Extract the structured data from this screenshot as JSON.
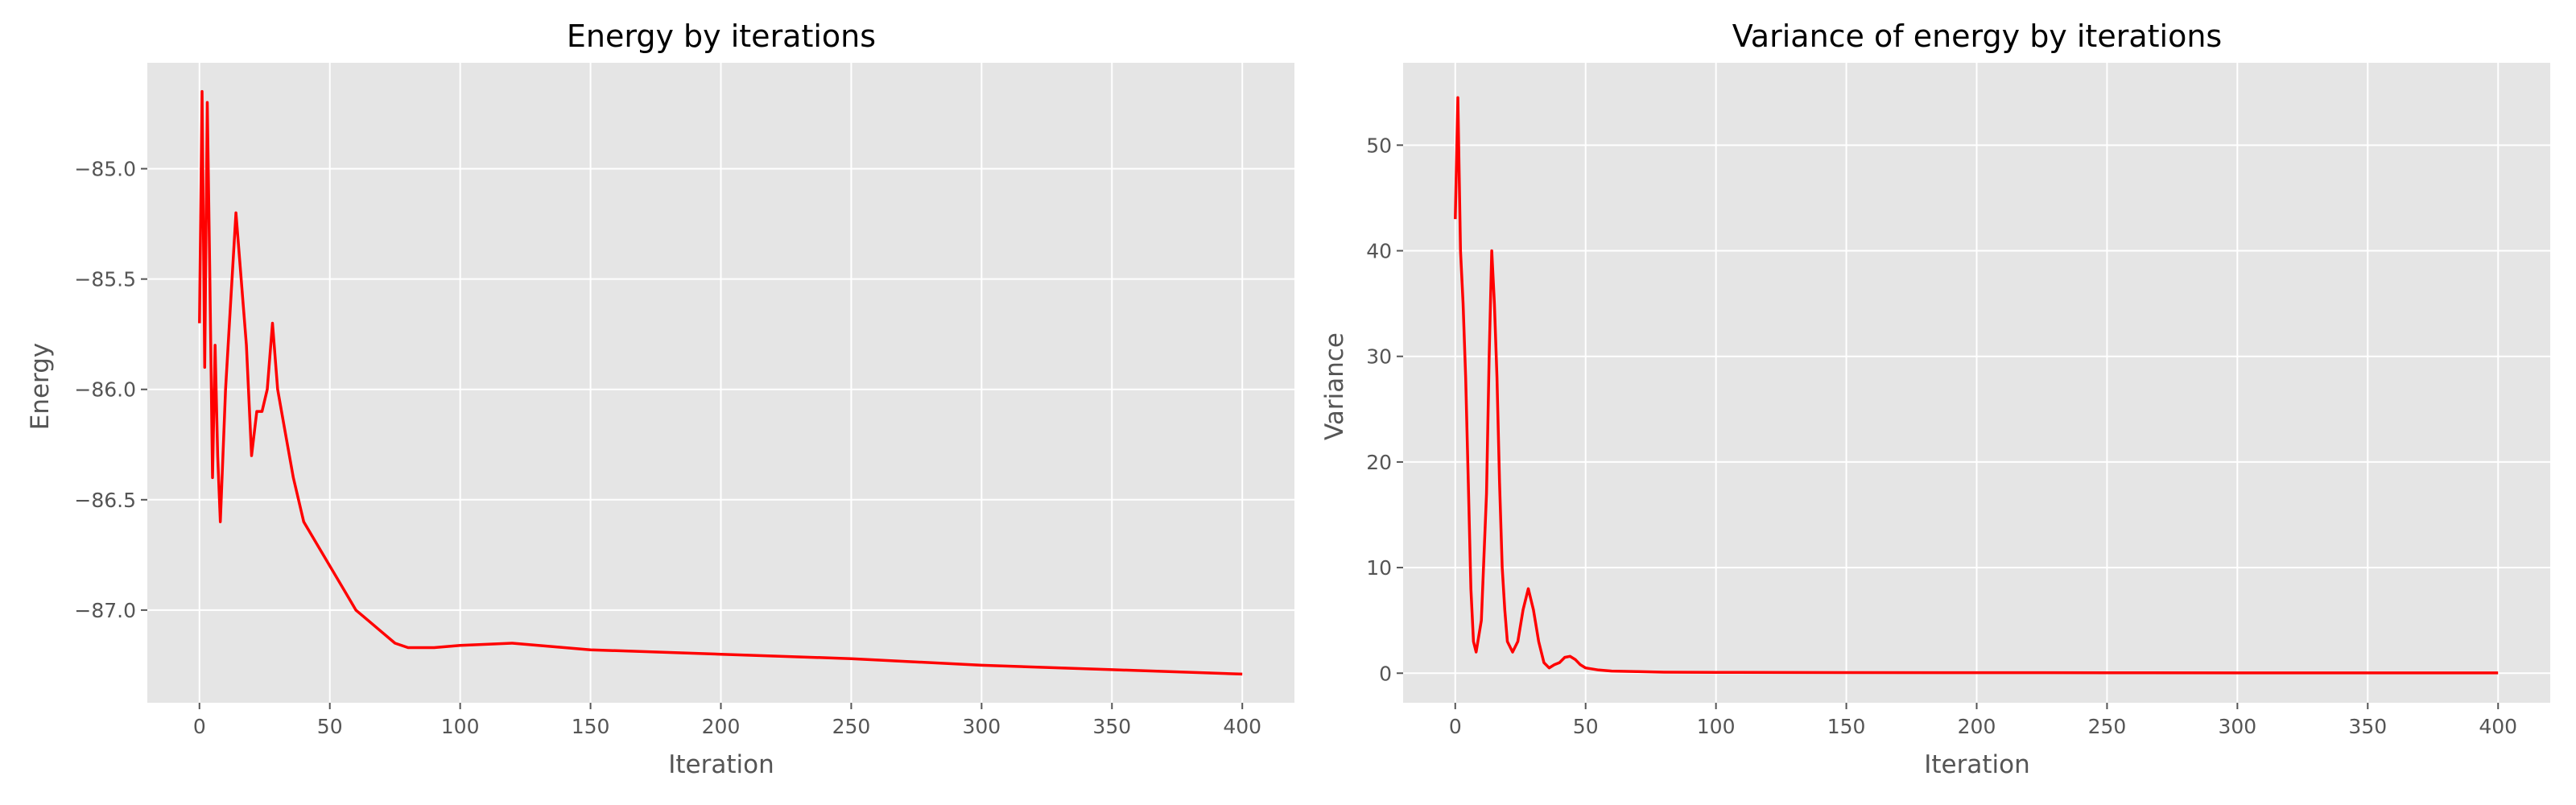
{
  "charts": [
    {
      "type": "line",
      "title": "Energy by iterations",
      "xlabel": "Iteration",
      "ylabel": "Energy",
      "xlim": [
        -20,
        420
      ],
      "ylim": [
        -87.42,
        -84.52
      ],
      "xticks": [
        0,
        50,
        100,
        150,
        200,
        250,
        300,
        350,
        400
      ],
      "yticks": [
        -87.0,
        -86.5,
        -86.0,
        -85.5,
        -85.0
      ],
      "ytick_labels": [
        "−87.0",
        "−86.5",
        "−86.0",
        "−85.5",
        "−85.0"
      ],
      "grid": true,
      "background": "#e5e5e5",
      "series_color": "#ff0000",
      "series": [
        {
          "x": [
            0,
            1,
            2,
            3,
            4,
            5,
            6,
            7,
            8,
            10,
            12,
            14,
            16,
            18,
            20,
            22,
            24,
            26,
            28,
            30,
            33,
            36,
            40,
            45,
            50,
            55,
            60,
            65,
            70,
            75,
            80,
            90,
            100,
            120,
            150,
            200,
            250,
            300,
            350,
            400
          ],
          "y": [
            -85.7,
            -84.65,
            -85.9,
            -84.7,
            -85.5,
            -86.4,
            -85.8,
            -86.3,
            -86.6,
            -86.0,
            -85.6,
            -85.2,
            -85.5,
            -85.8,
            -86.3,
            -86.1,
            -86.1,
            -86.0,
            -85.7,
            -86.0,
            -86.2,
            -86.4,
            -86.6,
            -86.7,
            -86.8,
            -86.9,
            -87.0,
            -87.05,
            -87.1,
            -87.15,
            -87.17,
            -87.17,
            -87.16,
            -87.15,
            -87.18,
            -87.2,
            -87.22,
            -87.25,
            -87.27,
            -87.29
          ]
        }
      ]
    },
    {
      "type": "line",
      "title": "Variance of energy by iterations",
      "xlabel": "Iteration",
      "ylabel": "Variance",
      "xlim": [
        -20,
        420
      ],
      "ylim": [
        -2.8,
        57.8
      ],
      "xticks": [
        0,
        50,
        100,
        150,
        200,
        250,
        300,
        350,
        400
      ],
      "yticks": [
        0,
        10,
        20,
        30,
        40,
        50
      ],
      "ytick_labels": [
        "0",
        "10",
        "20",
        "30",
        "40",
        "50"
      ],
      "grid": true,
      "background": "#e5e5e5",
      "series_color": "#ff0000",
      "series": [
        {
          "x": [
            0,
            1,
            2,
            3,
            4,
            5,
            6,
            7,
            8,
            10,
            12,
            13,
            14,
            15,
            16,
            17,
            18,
            19,
            20,
            22,
            24,
            26,
            28,
            30,
            32,
            34,
            36,
            38,
            40,
            42,
            44,
            46,
            48,
            50,
            55,
            60,
            70,
            80,
            100,
            150,
            200,
            250,
            300,
            350,
            400
          ],
          "y": [
            43,
            54.5,
            40,
            35,
            28,
            18,
            8,
            3,
            2,
            5,
            17,
            30,
            40,
            35,
            28,
            18,
            10,
            6,
            3,
            2,
            3,
            6,
            8,
            6,
            3,
            1,
            0.5,
            0.8,
            1,
            1.5,
            1.6,
            1.3,
            0.8,
            0.5,
            0.3,
            0.2,
            0.15,
            0.1,
            0.08,
            0.06,
            0.05,
            0.04,
            0.03,
            0.03,
            0.03
          ]
        }
      ]
    }
  ]
}
